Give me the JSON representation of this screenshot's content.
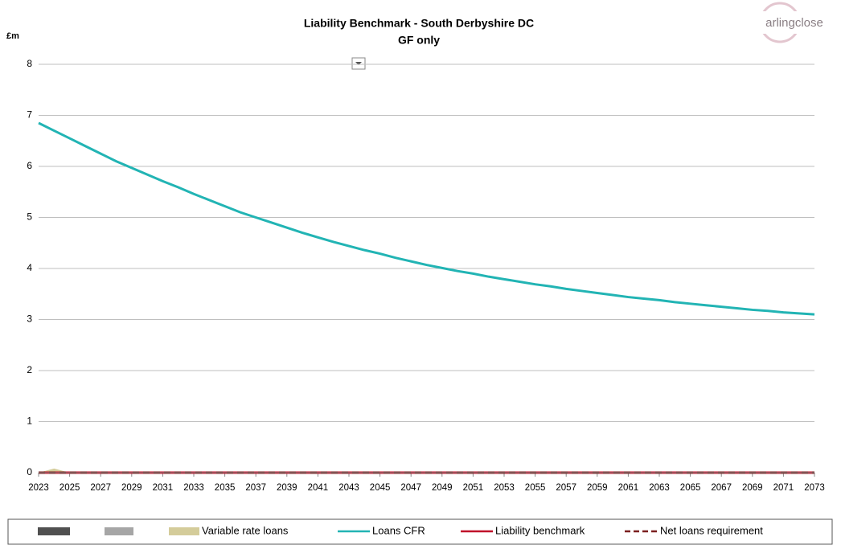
{
  "chart_data": {
    "type": "line",
    "title": "Liability Benchmark - South Derbyshire DC",
    "subtitle": "GF only",
    "y_label": "£m",
    "logo": "arlingclose",
    "x": [
      2023,
      2024,
      2025,
      2026,
      2027,
      2028,
      2029,
      2030,
      2031,
      2032,
      2033,
      2034,
      2035,
      2036,
      2037,
      2038,
      2039,
      2040,
      2041,
      2042,
      2043,
      2044,
      2045,
      2046,
      2047,
      2048,
      2049,
      2050,
      2051,
      2052,
      2053,
      2054,
      2055,
      2056,
      2057,
      2058,
      2059,
      2060,
      2061,
      2062,
      2063,
      2064,
      2065,
      2066,
      2067,
      2068,
      2069,
      2070,
      2071,
      2072,
      2073
    ],
    "xlim": [
      2023,
      2073
    ],
    "xticks": [
      2023,
      2025,
      2027,
      2029,
      2031,
      2033,
      2035,
      2037,
      2039,
      2041,
      2043,
      2045,
      2047,
      2049,
      2051,
      2053,
      2055,
      2057,
      2059,
      2061,
      2063,
      2065,
      2067,
      2069,
      2071,
      2073
    ],
    "ylim": [
      0,
      8
    ],
    "yticks": [
      0,
      1,
      2,
      3,
      4,
      5,
      6,
      7,
      8
    ],
    "grid": true,
    "legend": "bottom",
    "series": [
      {
        "name": null,
        "color": "#505050",
        "style": "area",
        "values": [
          0,
          0,
          0,
          0,
          0,
          0,
          0,
          0,
          0,
          0,
          0,
          0,
          0,
          0,
          0,
          0,
          0,
          0,
          0,
          0,
          0,
          0,
          0,
          0,
          0,
          0,
          0,
          0,
          0,
          0,
          0,
          0,
          0,
          0,
          0,
          0,
          0,
          0,
          0,
          0,
          0,
          0,
          0,
          0,
          0,
          0,
          0,
          0,
          0,
          0,
          0
        ]
      },
      {
        "name": null,
        "color": "#a6a6a6",
        "style": "area",
        "values": [
          0,
          0,
          0,
          0,
          0,
          0,
          0,
          0,
          0,
          0,
          0,
          0,
          0,
          0,
          0,
          0,
          0,
          0,
          0,
          0,
          0,
          0,
          0,
          0,
          0,
          0,
          0,
          0,
          0,
          0,
          0,
          0,
          0,
          0,
          0,
          0,
          0,
          0,
          0,
          0,
          0,
          0,
          0,
          0,
          0,
          0,
          0,
          0,
          0,
          0,
          0
        ]
      },
      {
        "name": "Variable rate loans",
        "color": "#d4cc9a",
        "style": "area",
        "values": [
          0,
          0.08,
          0,
          0,
          0,
          0,
          0,
          0,
          0,
          0,
          0,
          0,
          0,
          0,
          0,
          0,
          0,
          0,
          0,
          0,
          0,
          0,
          0,
          0,
          0,
          0,
          0,
          0,
          0,
          0,
          0,
          0,
          0,
          0,
          0,
          0,
          0,
          0,
          0,
          0,
          0,
          0,
          0,
          0,
          0,
          0,
          0,
          0,
          0,
          0,
          0
        ]
      },
      {
        "name": "Loans CFR",
        "color": "#22b4b4",
        "style": "line",
        "values": [
          6.85,
          6.7,
          6.55,
          6.4,
          6.25,
          6.1,
          5.97,
          5.84,
          5.71,
          5.59,
          5.46,
          5.34,
          5.22,
          5.1,
          5.0,
          4.9,
          4.8,
          4.7,
          4.61,
          4.52,
          4.44,
          4.36,
          4.29,
          4.21,
          4.14,
          4.07,
          4.01,
          3.95,
          3.9,
          3.84,
          3.79,
          3.74,
          3.69,
          3.65,
          3.6,
          3.56,
          3.52,
          3.48,
          3.44,
          3.41,
          3.38,
          3.34,
          3.31,
          3.28,
          3.25,
          3.22,
          3.19,
          3.17,
          3.14,
          3.12,
          3.1
        ]
      },
      {
        "name": "Liability benchmark",
        "color": "#c0102a",
        "style": "line",
        "values": [
          0,
          0,
          0,
          0,
          0,
          0,
          0,
          0,
          0,
          0,
          0,
          0,
          0,
          0,
          0,
          0,
          0,
          0,
          0,
          0,
          0,
          0,
          0,
          0,
          0,
          0,
          0,
          0,
          0,
          0,
          0,
          0,
          0,
          0,
          0,
          0,
          0,
          0,
          0,
          0,
          0,
          0,
          0,
          0,
          0,
          0,
          0,
          0,
          0,
          0,
          0
        ]
      },
      {
        "name": "Net loans requirement",
        "color": "#7b1f1f",
        "style": "dash",
        "values": [
          0,
          0,
          0,
          0,
          0,
          0,
          0,
          0,
          0,
          0,
          0,
          0,
          0,
          0,
          0,
          0,
          0,
          0,
          0,
          0,
          0,
          0,
          0,
          0,
          0,
          0,
          0,
          0,
          0,
          0,
          0,
          0,
          0,
          0,
          0,
          0,
          0,
          0,
          0,
          0,
          0,
          0,
          0,
          0,
          0,
          0,
          0,
          0,
          0,
          0,
          0
        ]
      }
    ]
  }
}
